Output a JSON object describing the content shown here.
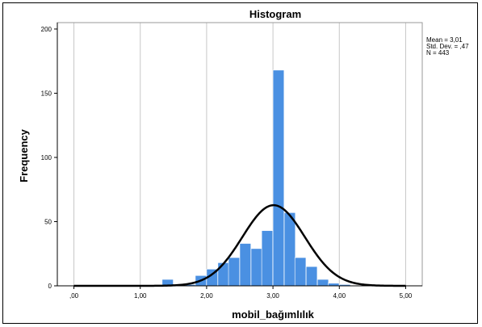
{
  "chart_data": {
    "type": "bar",
    "title": "Histogram",
    "xlabel": "mobil_bağımlılık",
    "ylabel": "Frequency",
    "xlim": [
      -0.25,
      5.25
    ],
    "ylim": [
      0,
      205
    ],
    "xticks": [
      0,
      1,
      2,
      3,
      4,
      5
    ],
    "xtick_labels": [
      ",00",
      "1,00",
      "2,00",
      "3,00",
      "4,00",
      "5,00"
    ],
    "yticks": [
      0,
      50,
      100,
      150,
      200
    ],
    "ytick_labels": [
      "0",
      "50",
      "100",
      "150",
      "200"
    ],
    "grid": "vertical",
    "bin_width": 0.167,
    "bins": [
      {
        "start": 1.33,
        "value": 5
      },
      {
        "start": 1.5,
        "value": 1
      },
      {
        "start": 1.67,
        "value": 1
      },
      {
        "start": 1.83,
        "value": 8
      },
      {
        "start": 2.0,
        "value": 13
      },
      {
        "start": 2.17,
        "value": 18
      },
      {
        "start": 2.33,
        "value": 22
      },
      {
        "start": 2.5,
        "value": 33
      },
      {
        "start": 2.67,
        "value": 29
      },
      {
        "start": 2.83,
        "value": 43
      },
      {
        "start": 3.0,
        "value": 168
      },
      {
        "start": 3.17,
        "value": 57
      },
      {
        "start": 3.33,
        "value": 22
      },
      {
        "start": 3.5,
        "value": 15
      },
      {
        "start": 3.67,
        "value": 5
      },
      {
        "start": 3.83,
        "value": 2
      },
      {
        "start": 4.0,
        "value": 1
      }
    ],
    "normal_curve": {
      "mean": 3.01,
      "sd": 0.47,
      "n": 443
    },
    "stats": [
      "Mean = 3,01",
      "Std. Dev. = ,47",
      "N = 443"
    ],
    "bar_color": "#4a90e2",
    "curve_color": "#000000",
    "grid_color": "#c8c8c8"
  }
}
